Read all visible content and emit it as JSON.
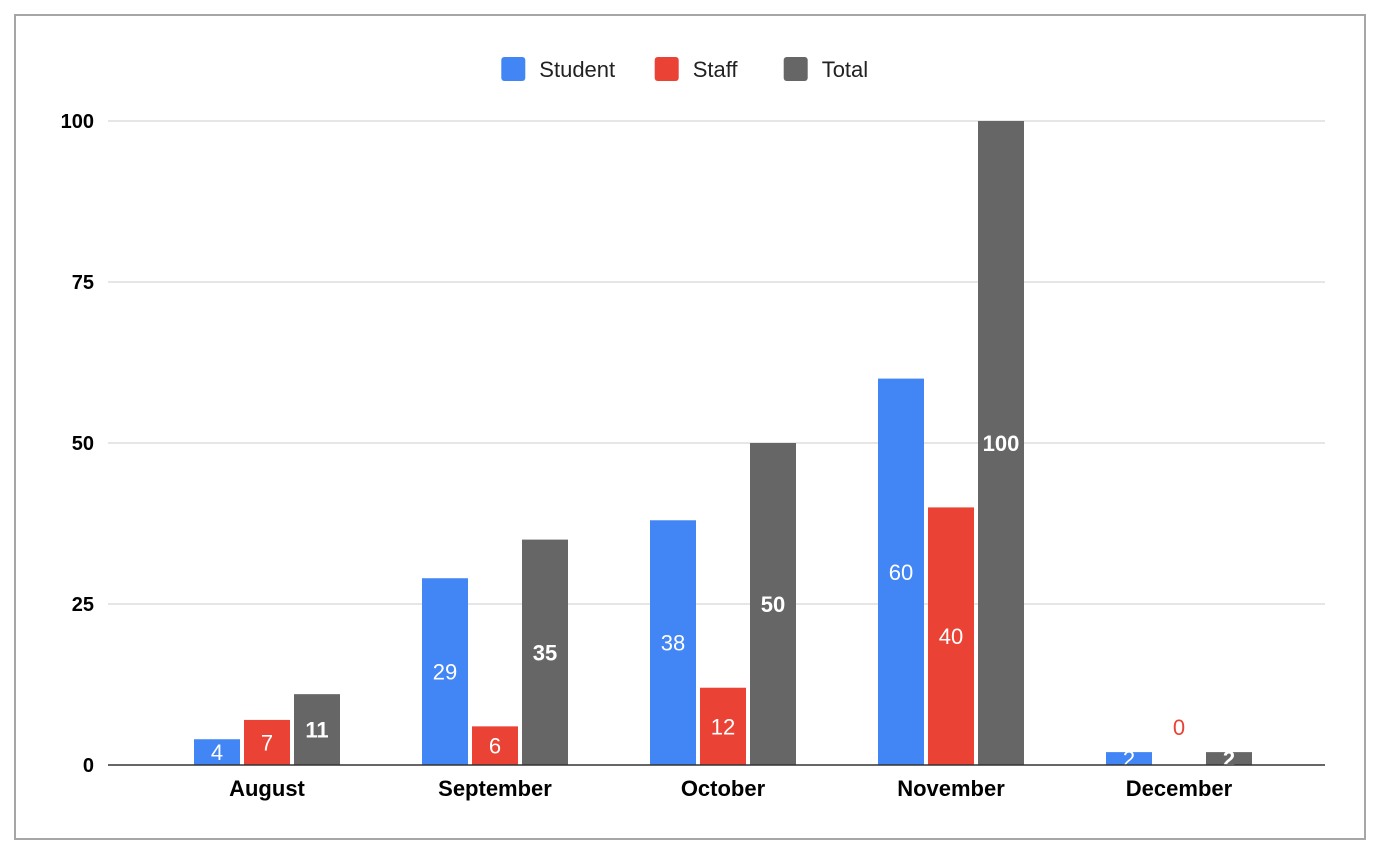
{
  "chart_data": {
    "type": "bar",
    "title": "",
    "xlabel": "",
    "ylabel": "",
    "categories": [
      "August",
      "September",
      "October",
      "November",
      "December"
    ],
    "series": [
      {
        "name": "Student",
        "color": "#4285f4",
        "values": [
          4,
          29,
          38,
          60,
          2
        ],
        "label_color": "#ffffff",
        "label_bold": false
      },
      {
        "name": "Staff",
        "color": "#ea4335",
        "values": [
          7,
          6,
          12,
          40,
          0
        ],
        "label_color": "#ffffff",
        "label_bold": false
      },
      {
        "name": "Total",
        "color": "#666666",
        "values": [
          11,
          35,
          50,
          100,
          2
        ],
        "label_color": "#ffffff",
        "label_bold": true
      }
    ],
    "ylim": [
      0,
      100
    ],
    "yticks": [
      0,
      25,
      50,
      75,
      100
    ],
    "grid": true,
    "legend": "top-center",
    "data_labels": true
  }
}
